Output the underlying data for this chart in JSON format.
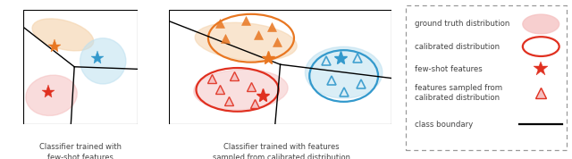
{
  "fig_width": 6.4,
  "fig_height": 1.78,
  "dpi": 100,
  "panel1_title": "Classifier trained with\nfew-shot features",
  "panel2_title": "Classifier trained with features\nsampled from calibrated distribution",
  "orange_color": "#E87722",
  "red_color": "#E03020",
  "blue_color": "#3399CC",
  "pink_blob_color": "#F5C0C0",
  "orange_blob_color": "#F5D5B0",
  "blue_blob_color": "#BDE0F0",
  "boundary_color": "#111111",
  "legend_border_color": "#999999",
  "text_color": "#444444"
}
